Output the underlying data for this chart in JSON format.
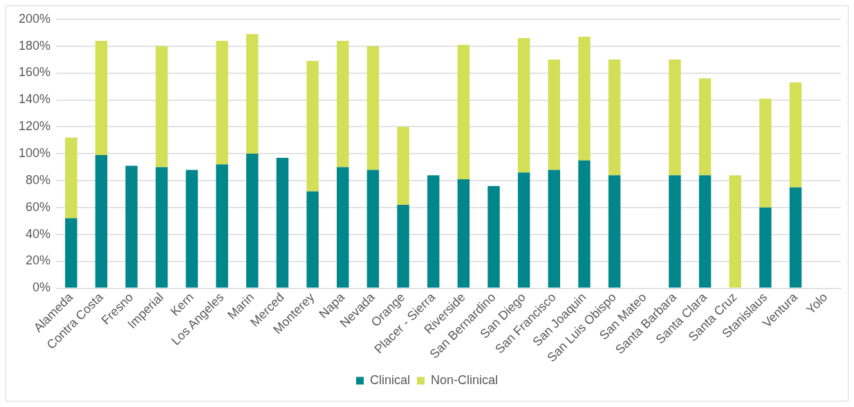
{
  "chart_data": {
    "type": "bar",
    "stacked": true,
    "categories": [
      "Alameda",
      "Contra Costa",
      "Fresno",
      "Imperial",
      "Kern",
      "Los Angeles",
      "Marin",
      "Merced",
      "Monterey",
      "Napa",
      "Nevada",
      "Orange",
      "Placer - Sierra",
      "Riverside",
      "San Bernardino",
      "San Diego",
      "San Francisco",
      "San Joaquin",
      "San Luis Obispo",
      "San Mateo",
      "Santa Barbara",
      "Santa Clara",
      "Santa Cruz",
      "Stanislaus",
      "Ventura",
      "Yolo"
    ],
    "series": [
      {
        "name": "Clinical",
        "color": "#00868b",
        "values": [
          52,
          99,
          91,
          90,
          88,
          92,
          100,
          97,
          72,
          90,
          88,
          62,
          84,
          81,
          76,
          86,
          88,
          95,
          84,
          null,
          84,
          84,
          null,
          60,
          75,
          null
        ]
      },
      {
        "name": "Non-Clinical",
        "color": "#d4df58",
        "values": [
          60,
          85,
          null,
          90,
          null,
          92,
          89,
          null,
          97,
          94,
          92,
          58,
          null,
          100,
          null,
          100,
          82,
          92,
          86,
          null,
          86,
          72,
          84,
          81,
          78,
          null
        ]
      }
    ],
    "ylim": [
      0,
      200
    ],
    "yticks": [
      {
        "value": 0,
        "label": "0%"
      },
      {
        "value": 20,
        "label": "20%"
      },
      {
        "value": 40,
        "label": "40%"
      },
      {
        "value": 60,
        "label": "60%"
      },
      {
        "value": 80,
        "label": "80%"
      },
      {
        "value": 100,
        "label": "100%"
      },
      {
        "value": 120,
        "label": "120%"
      },
      {
        "value": 140,
        "label": "140%"
      },
      {
        "value": 160,
        "label": "160%"
      },
      {
        "value": 180,
        "label": "180%"
      },
      {
        "value": 200,
        "label": "200%"
      }
    ],
    "grid": "y",
    "legend": "bottom"
  }
}
